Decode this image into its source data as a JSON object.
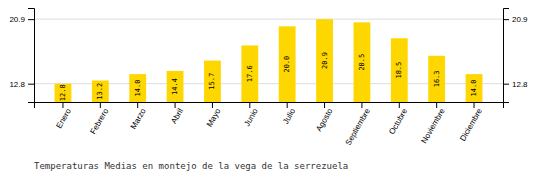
{
  "chart_data": {
    "type": "bar",
    "title": "Temperaturas Medias en montejo de la vega de la serrezuela",
    "categories": [
      "Enero",
      "Febrero",
      "Marzo",
      "Abril",
      "Mayo",
      "Junio",
      "Julio",
      "Agosto",
      "Septiembre",
      "Octubre",
      "Noviembre",
      "Diciembre"
    ],
    "values": [
      12.8,
      13.2,
      14.0,
      14.4,
      15.7,
      17.6,
      20.0,
      20.9,
      20.5,
      18.5,
      16.3,
      14.0
    ],
    "value_labels": [
      "12.8",
      "13.2",
      "14.0",
      "14.4",
      "15.7",
      "17.6",
      "20.0",
      "20.9",
      "20.5",
      "18.5",
      "16.3",
      "14.0"
    ],
    "color": "#FFD700",
    "ylim": [
      10.5,
      22.3
    ],
    "yticks": [
      12.8,
      20.9
    ],
    "grid": true,
    "data_labels": true
  }
}
